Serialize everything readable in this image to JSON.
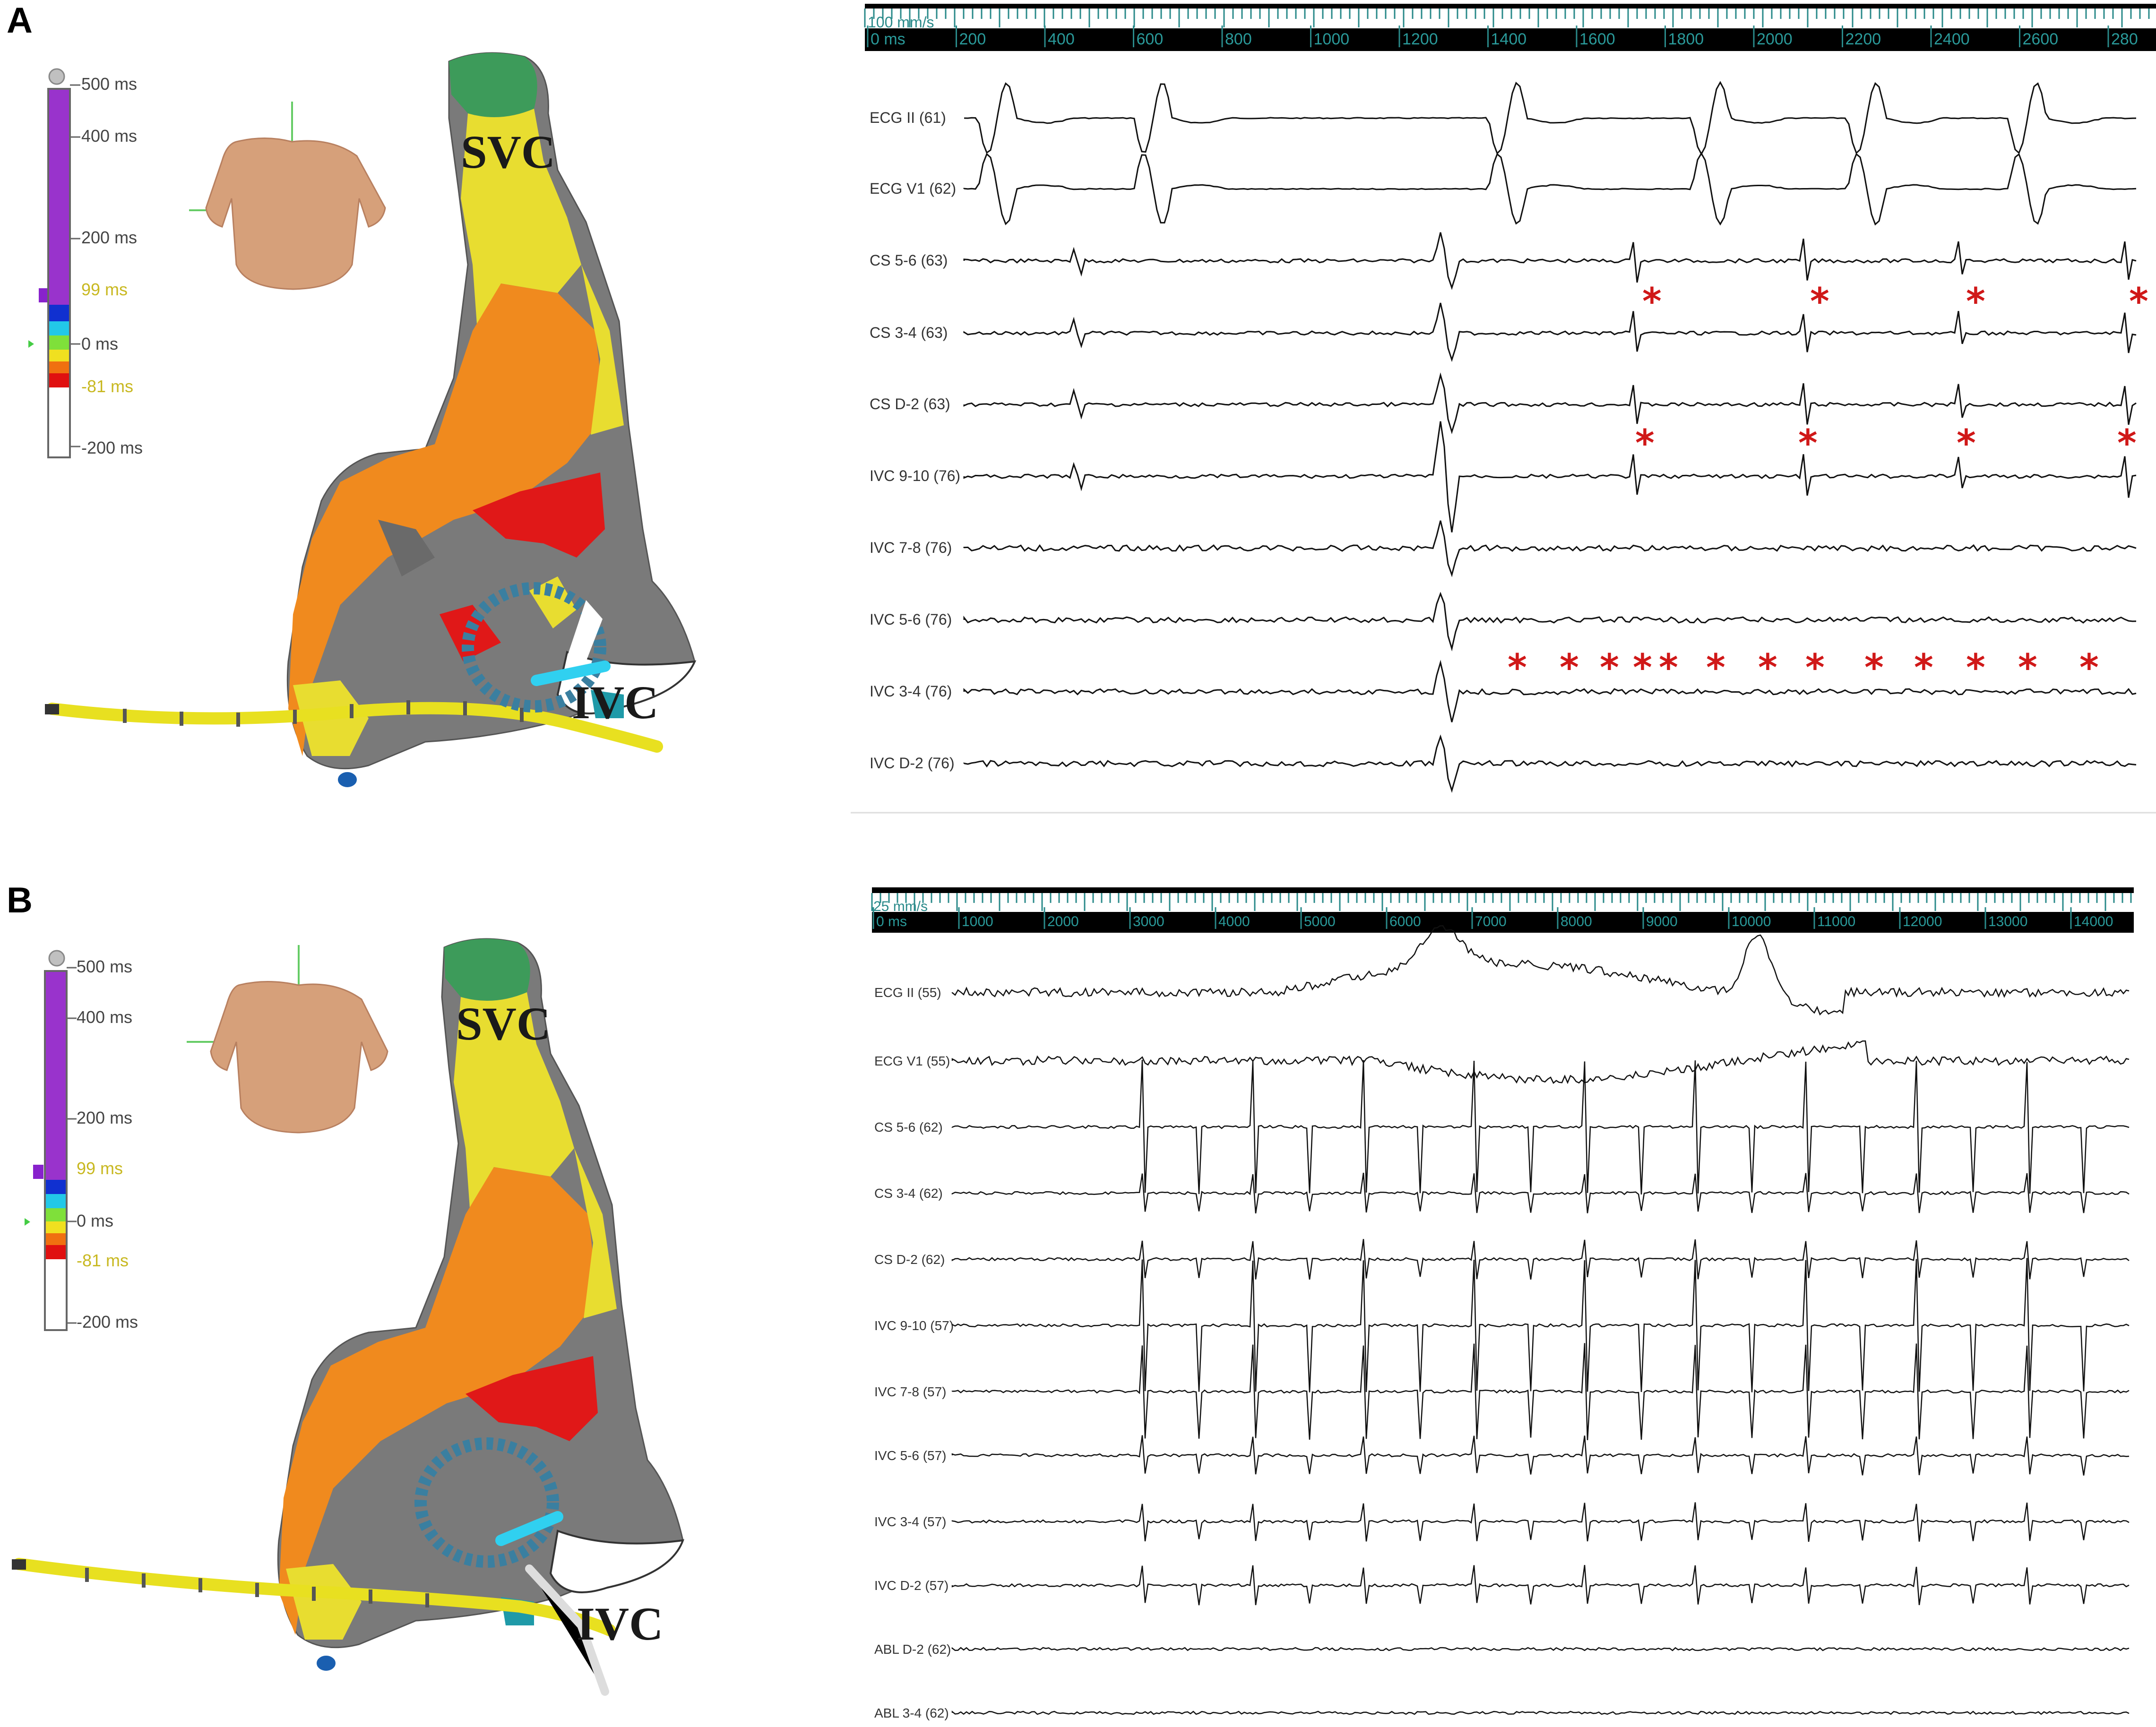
{
  "figure": {
    "panel_a": {
      "letter": "A",
      "color_scale": {
        "labels": [
          "500 ms",
          "400 ms",
          "200 ms",
          "99 ms",
          "0 ms",
          "-81 ms",
          "-200 ms"
        ]
      },
      "anatomy": {
        "svc": "SVC",
        "ivc": "IVC"
      },
      "recording": {
        "speed": "100 mm/s",
        "time_ticks": [
          "0 ms",
          "200",
          "400",
          "600",
          "800",
          "1000",
          "1200",
          "1400",
          "1600",
          "1800",
          "2000",
          "2200",
          "2400",
          "2600",
          "280"
        ],
        "channels": [
          "ECG II (61)",
          "ECG V1 (62)",
          "CS 5-6 (63)",
          "CS 3-4 (63)",
          "CS D-2 (63)",
          "IVC 9-10 (76)",
          "IVC 7-8 (76)",
          "IVC 5-6 (76)",
          "IVC 3-4 (76)",
          "IVC D-2 (76)"
        ],
        "marker": "*"
      }
    },
    "panel_b": {
      "letter": "B",
      "color_scale": {
        "labels": [
          "500 ms",
          "400 ms",
          "200 ms",
          "99 ms",
          "0 ms",
          "-81 ms",
          "-200 ms"
        ]
      },
      "anatomy": {
        "svc": "SVC",
        "ivc": "IVC"
      },
      "recording": {
        "speed": "25 mm/s",
        "time_ticks": [
          "0 ms",
          "1000",
          "2000",
          "3000",
          "4000",
          "5000",
          "6000",
          "7000",
          "8000",
          "9000",
          "10000",
          "11000",
          "12000",
          "13000",
          "14000"
        ],
        "channels": [
          "ECG II (55)",
          "ECG V1 (55)",
          "CS 5-6 (62)",
          "CS 3-4 (62)",
          "CS D-2 (62)",
          "IVC 9-10 (57)",
          "IVC 7-8 (57)",
          "IVC 5-6 (57)",
          "IVC 3-4 (57)",
          "IVC D-2 (57)",
          "ABL D-2 (62)",
          "ABL 3-4 (62)"
        ]
      }
    }
  }
}
